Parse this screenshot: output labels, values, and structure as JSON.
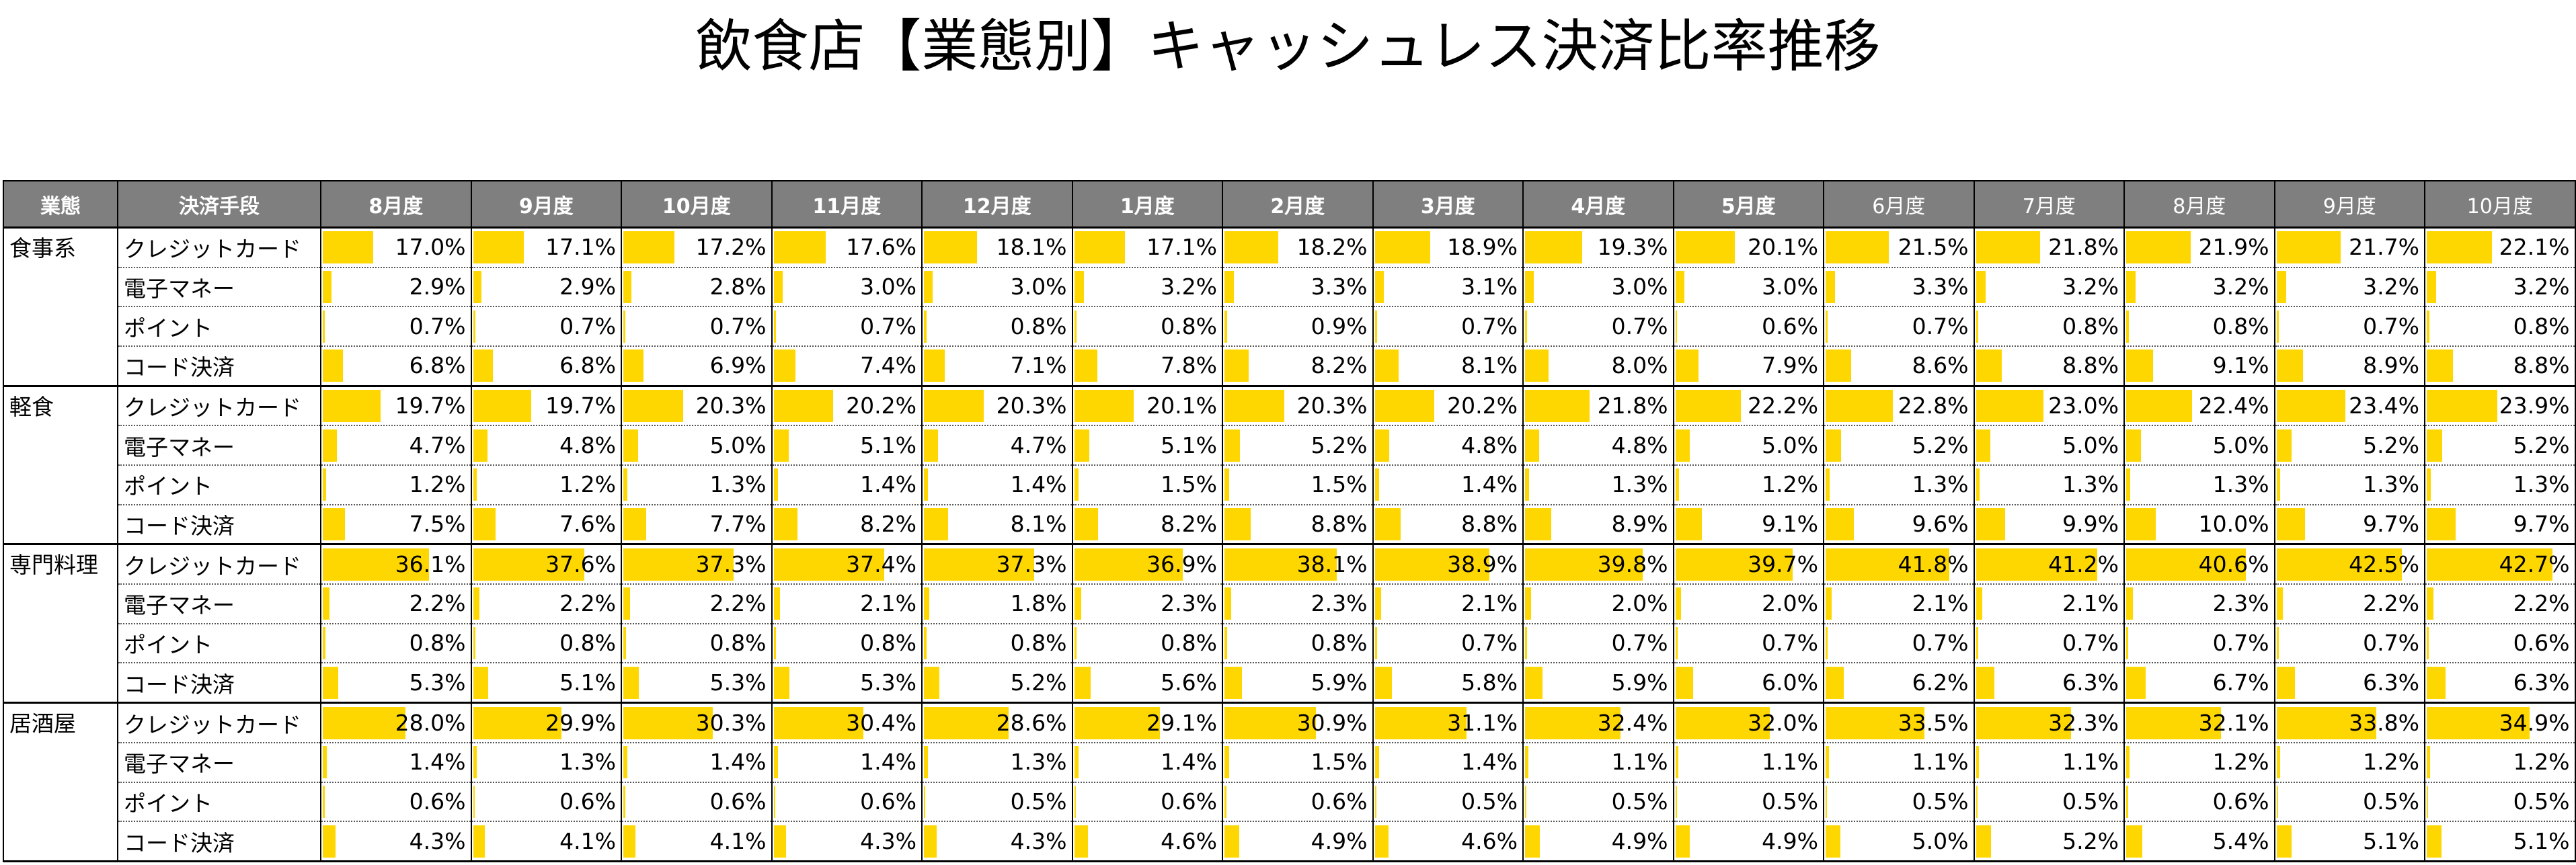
{
  "title": "飲食店【業態別】キャッシュレス決済比率推移",
  "headers": {
    "category": "業態",
    "method": "決済手段",
    "months": [
      "8月度",
      "9月度",
      "10月度",
      "11月度",
      "12月度",
      "1月度",
      "2月度",
      "3月度",
      "4月度",
      "5月度",
      "6月度",
      "7月度",
      "8月度",
      "9月度",
      "10月度"
    ]
  },
  "colors": {
    "header_bg": "#7f7f7f",
    "bar": "#ffd700"
  },
  "groups": [
    {
      "name": "食事系",
      "rows": [
        {
          "method": "クレジットカード",
          "values": [
            "17.0%",
            "17.1%",
            "17.2%",
            "17.6%",
            "18.1%",
            "17.1%",
            "18.2%",
            "18.9%",
            "19.3%",
            "20.1%",
            "21.5%",
            "21.8%",
            "21.9%",
            "21.7%",
            "22.1%"
          ]
        },
        {
          "method": "電子マネー",
          "values": [
            "2.9%",
            "2.9%",
            "2.8%",
            "3.0%",
            "3.0%",
            "3.2%",
            "3.3%",
            "3.1%",
            "3.0%",
            "3.0%",
            "3.3%",
            "3.2%",
            "3.2%",
            "3.2%",
            "3.2%"
          ]
        },
        {
          "method": "ポイント",
          "values": [
            "0.7%",
            "0.7%",
            "0.7%",
            "0.7%",
            "0.8%",
            "0.8%",
            "0.9%",
            "0.7%",
            "0.7%",
            "0.6%",
            "0.7%",
            "0.8%",
            "0.8%",
            "0.7%",
            "0.8%"
          ]
        },
        {
          "method": "コード決済",
          "values": [
            "6.8%",
            "6.8%",
            "6.9%",
            "7.4%",
            "7.1%",
            "7.8%",
            "8.2%",
            "8.1%",
            "8.0%",
            "7.9%",
            "8.6%",
            "8.8%",
            "9.1%",
            "8.9%",
            "8.8%"
          ]
        }
      ]
    },
    {
      "name": "軽食",
      "rows": [
        {
          "method": "クレジットカード",
          "values": [
            "19.7%",
            "19.7%",
            "20.3%",
            "20.2%",
            "20.3%",
            "20.1%",
            "20.3%",
            "20.2%",
            "21.8%",
            "22.2%",
            "22.8%",
            "23.0%",
            "22.4%",
            "23.4%",
            "23.9%"
          ]
        },
        {
          "method": "電子マネー",
          "values": [
            "4.7%",
            "4.8%",
            "5.0%",
            "5.1%",
            "4.7%",
            "5.1%",
            "5.2%",
            "4.8%",
            "4.8%",
            "5.0%",
            "5.2%",
            "5.0%",
            "5.0%",
            "5.2%",
            "5.2%"
          ]
        },
        {
          "method": "ポイント",
          "values": [
            "1.2%",
            "1.2%",
            "1.3%",
            "1.4%",
            "1.4%",
            "1.5%",
            "1.5%",
            "1.4%",
            "1.3%",
            "1.2%",
            "1.3%",
            "1.3%",
            "1.3%",
            "1.3%",
            "1.3%"
          ]
        },
        {
          "method": "コード決済",
          "values": [
            "7.5%",
            "7.6%",
            "7.7%",
            "8.2%",
            "8.1%",
            "8.2%",
            "8.8%",
            "8.8%",
            "8.9%",
            "9.1%",
            "9.6%",
            "9.9%",
            "10.0%",
            "9.7%",
            "9.7%"
          ]
        }
      ]
    },
    {
      "name": "専門料理",
      "rows": [
        {
          "method": "クレジットカード",
          "values": [
            "36.1%",
            "37.6%",
            "37.3%",
            "37.4%",
            "37.3%",
            "36.9%",
            "38.1%",
            "38.9%",
            "39.8%",
            "39.7%",
            "41.8%",
            "41.2%",
            "40.6%",
            "42.5%",
            "42.7%"
          ]
        },
        {
          "method": "電子マネー",
          "values": [
            "2.2%",
            "2.2%",
            "2.2%",
            "2.1%",
            "1.8%",
            "2.3%",
            "2.3%",
            "2.1%",
            "2.0%",
            "2.0%",
            "2.1%",
            "2.1%",
            "2.3%",
            "2.2%",
            "2.2%"
          ]
        },
        {
          "method": "ポイント",
          "values": [
            "0.8%",
            "0.8%",
            "0.8%",
            "0.8%",
            "0.8%",
            "0.8%",
            "0.8%",
            "0.7%",
            "0.7%",
            "0.7%",
            "0.7%",
            "0.7%",
            "0.7%",
            "0.7%",
            "0.6%"
          ]
        },
        {
          "method": "コード決済",
          "values": [
            "5.3%",
            "5.1%",
            "5.3%",
            "5.3%",
            "5.2%",
            "5.6%",
            "5.9%",
            "5.8%",
            "5.9%",
            "6.0%",
            "6.2%",
            "6.3%",
            "6.7%",
            "6.3%",
            "6.3%"
          ]
        }
      ]
    },
    {
      "name": "居酒屋",
      "rows": [
        {
          "method": "クレジットカード",
          "values": [
            "28.0%",
            "29.9%",
            "30.3%",
            "30.4%",
            "28.6%",
            "29.1%",
            "30.9%",
            "31.1%",
            "32.4%",
            "32.0%",
            "33.5%",
            "32.3%",
            "32.1%",
            "33.8%",
            "34.9%"
          ]
        },
        {
          "method": "電子マネー",
          "values": [
            "1.4%",
            "1.3%",
            "1.4%",
            "1.4%",
            "1.3%",
            "1.4%",
            "1.5%",
            "1.4%",
            "1.1%",
            "1.1%",
            "1.1%",
            "1.1%",
            "1.2%",
            "1.2%",
            "1.2%"
          ]
        },
        {
          "method": "ポイント",
          "values": [
            "0.6%",
            "0.6%",
            "0.6%",
            "0.6%",
            "0.5%",
            "0.6%",
            "0.6%",
            "0.5%",
            "0.5%",
            "0.5%",
            "0.5%",
            "0.5%",
            "0.6%",
            "0.5%",
            "0.5%"
          ]
        },
        {
          "method": "コード決済",
          "values": [
            "4.3%",
            "4.1%",
            "4.1%",
            "4.3%",
            "4.3%",
            "4.6%",
            "4.9%",
            "4.6%",
            "4.9%",
            "4.9%",
            "5.0%",
            "5.2%",
            "5.4%",
            "5.1%",
            "5.1%"
          ]
        }
      ]
    }
  ],
  "chart_data": {
    "type": "table",
    "title": "飲食店【業態別】キャッシュレス決済比率推移",
    "columns": [
      "8月度",
      "9月度",
      "10月度",
      "11月度",
      "12月度",
      "1月度",
      "2月度",
      "3月度",
      "4月度",
      "5月度",
      "6月度",
      "7月度",
      "8月度",
      "9月度",
      "10月度"
    ],
    "series": [
      {
        "name": "食事系 クレジットカード",
        "values": [
          17.0,
          17.1,
          17.2,
          17.6,
          18.1,
          17.1,
          18.2,
          18.9,
          19.3,
          20.1,
          21.5,
          21.8,
          21.9,
          21.7,
          22.1
        ]
      },
      {
        "name": "食事系 電子マネー",
        "values": [
          2.9,
          2.9,
          2.8,
          3.0,
          3.0,
          3.2,
          3.3,
          3.1,
          3.0,
          3.0,
          3.3,
          3.2,
          3.2,
          3.2,
          3.2
        ]
      },
      {
        "name": "食事系 ポイント",
        "values": [
          0.7,
          0.7,
          0.7,
          0.7,
          0.8,
          0.8,
          0.9,
          0.7,
          0.7,
          0.6,
          0.7,
          0.8,
          0.8,
          0.7,
          0.8
        ]
      },
      {
        "name": "食事系 コード決済",
        "values": [
          6.8,
          6.8,
          6.9,
          7.4,
          7.1,
          7.8,
          8.2,
          8.1,
          8.0,
          7.9,
          8.6,
          8.8,
          9.1,
          8.9,
          8.8
        ]
      },
      {
        "name": "軽食 クレジットカード",
        "values": [
          19.7,
          19.7,
          20.3,
          20.2,
          20.3,
          20.1,
          20.3,
          20.2,
          21.8,
          22.2,
          22.8,
          23.0,
          22.4,
          23.4,
          23.9
        ]
      },
      {
        "name": "軽食 電子マネー",
        "values": [
          4.7,
          4.8,
          5.0,
          5.1,
          4.7,
          5.1,
          5.2,
          4.8,
          4.8,
          5.0,
          5.2,
          5.0,
          5.0,
          5.2,
          5.2
        ]
      },
      {
        "name": "軽食 ポイント",
        "values": [
          1.2,
          1.2,
          1.3,
          1.4,
          1.4,
          1.5,
          1.5,
          1.4,
          1.3,
          1.2,
          1.3,
          1.3,
          1.3,
          1.3,
          1.3
        ]
      },
      {
        "name": "軽食 コード決済",
        "values": [
          7.5,
          7.6,
          7.7,
          8.2,
          8.1,
          8.2,
          8.8,
          8.8,
          8.9,
          9.1,
          9.6,
          9.9,
          10.0,
          9.7,
          9.7
        ]
      },
      {
        "name": "専門料理 クレジットカード",
        "values": [
          36.1,
          37.6,
          37.3,
          37.4,
          37.3,
          36.9,
          38.1,
          38.9,
          39.8,
          39.7,
          41.8,
          41.2,
          40.6,
          42.5,
          42.7
        ]
      },
      {
        "name": "専門料理 電子マネー",
        "values": [
          2.2,
          2.2,
          2.2,
          2.1,
          1.8,
          2.3,
          2.3,
          2.1,
          2.0,
          2.0,
          2.1,
          2.1,
          2.3,
          2.2,
          2.2
        ]
      },
      {
        "name": "専門料理 ポイント",
        "values": [
          0.8,
          0.8,
          0.8,
          0.8,
          0.8,
          0.8,
          0.8,
          0.7,
          0.7,
          0.7,
          0.7,
          0.7,
          0.7,
          0.7,
          0.6
        ]
      },
      {
        "name": "専門料理 コード決済",
        "values": [
          5.3,
          5.1,
          5.3,
          5.3,
          5.2,
          5.6,
          5.9,
          5.8,
          5.9,
          6.0,
          6.2,
          6.3,
          6.7,
          6.3,
          6.3
        ]
      },
      {
        "name": "居酒屋 クレジットカード",
        "values": [
          28.0,
          29.9,
          30.3,
          30.4,
          28.6,
          29.1,
          30.9,
          31.1,
          32.4,
          32.0,
          33.5,
          32.3,
          32.1,
          33.8,
          34.9
        ]
      },
      {
        "name": "居酒屋 電子マネー",
        "values": [
          1.4,
          1.3,
          1.4,
          1.4,
          1.3,
          1.4,
          1.5,
          1.4,
          1.1,
          1.1,
          1.1,
          1.1,
          1.2,
          1.2,
          1.2
        ]
      },
      {
        "name": "居酒屋 ポイント",
        "values": [
          0.6,
          0.6,
          0.6,
          0.6,
          0.5,
          0.6,
          0.6,
          0.5,
          0.5,
          0.5,
          0.5,
          0.5,
          0.6,
          0.5,
          0.5
        ]
      },
      {
        "name": "居酒屋 コード決済",
        "values": [
          4.3,
          4.1,
          4.1,
          4.3,
          4.3,
          4.6,
          4.9,
          4.6,
          4.9,
          4.9,
          5.0,
          5.2,
          5.4,
          5.1,
          5.1
        ]
      }
    ],
    "bar_scale_max_percent": 50
  }
}
